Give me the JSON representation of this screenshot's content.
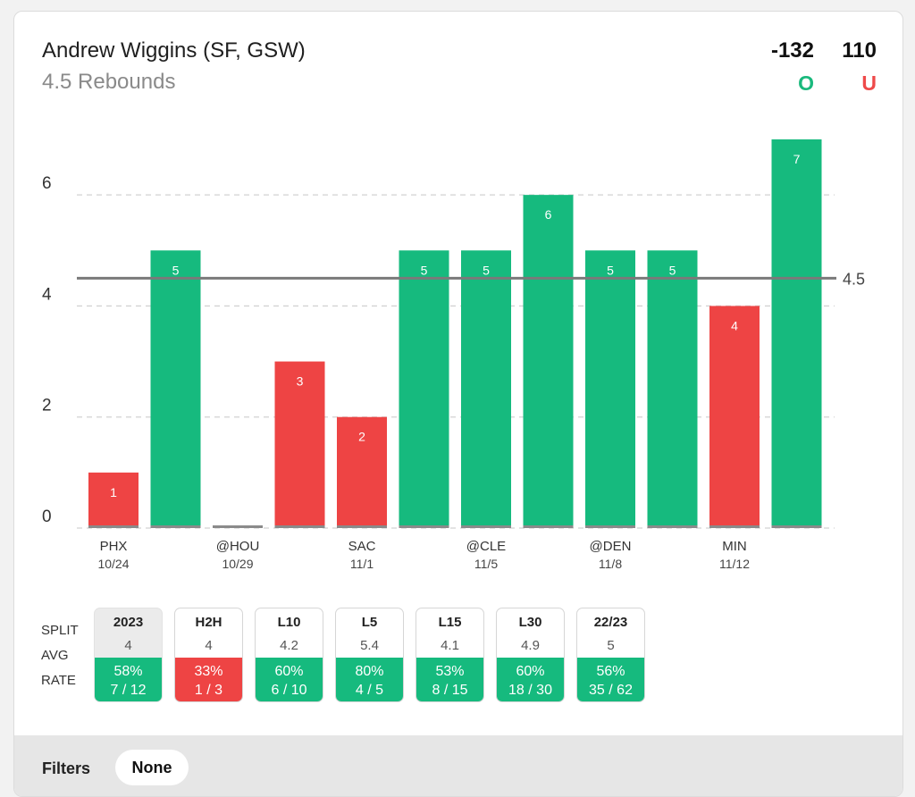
{
  "header": {
    "player": "Andrew Wiggins (SF, GSW)",
    "prop": "4.5 Rebounds",
    "over_odds": "-132",
    "under_odds": "110",
    "over_label": "O",
    "under_label": "U"
  },
  "colors": {
    "over": "#16ba7e",
    "under": "#ee4444",
    "zero": "#8a8a8a",
    "line": "#7a7a7a"
  },
  "chart_data": {
    "type": "bar",
    "ylim": [
      0,
      7
    ],
    "yticks": [
      "0",
      "2",
      "4",
      "6"
    ],
    "line_value": 4.5,
    "line_label": "4.5",
    "values": [
      1,
      5,
      0,
      3,
      2,
      5,
      5,
      6,
      5,
      5,
      4,
      7
    ],
    "labels": [
      "1",
      "5",
      "",
      "3",
      "2",
      "5",
      "5",
      "6",
      "5",
      "5",
      "4",
      "7"
    ],
    "x_labels": [
      {
        "team": "PHX",
        "date": "10/24",
        "index": 0
      },
      {
        "team": "@HOU",
        "date": "10/29",
        "index": 2
      },
      {
        "team": "SAC",
        "date": "11/1",
        "index": 4
      },
      {
        "team": "@CLE",
        "date": "11/5",
        "index": 6
      },
      {
        "team": "@DEN",
        "date": "11/8",
        "index": 8
      },
      {
        "team": "MIN",
        "date": "11/12",
        "index": 10
      }
    ],
    "grid": true
  },
  "splits": {
    "row_labels": {
      "split": "SPLIT",
      "avg": "AVG",
      "rate": "RATE"
    },
    "items": [
      {
        "label": "2023",
        "avg": "4",
        "pct": "58%",
        "frac": "7 / 12",
        "result": "over",
        "selected": true
      },
      {
        "label": "H2H",
        "avg": "4",
        "pct": "33%",
        "frac": "1 / 3",
        "result": "under",
        "selected": false
      },
      {
        "label": "L10",
        "avg": "4.2",
        "pct": "60%",
        "frac": "6 / 10",
        "result": "over",
        "selected": false
      },
      {
        "label": "L5",
        "avg": "5.4",
        "pct": "80%",
        "frac": "4 / 5",
        "result": "over",
        "selected": false
      },
      {
        "label": "L15",
        "avg": "4.1",
        "pct": "53%",
        "frac": "8 / 15",
        "result": "over",
        "selected": false
      },
      {
        "label": "L30",
        "avg": "4.9",
        "pct": "60%",
        "frac": "18 / 30",
        "result": "over",
        "selected": false
      },
      {
        "label": "22/23",
        "avg": "5",
        "pct": "56%",
        "frac": "35 / 62",
        "result": "over",
        "selected": false
      }
    ]
  },
  "filters": {
    "label": "Filters",
    "selected": "None"
  }
}
